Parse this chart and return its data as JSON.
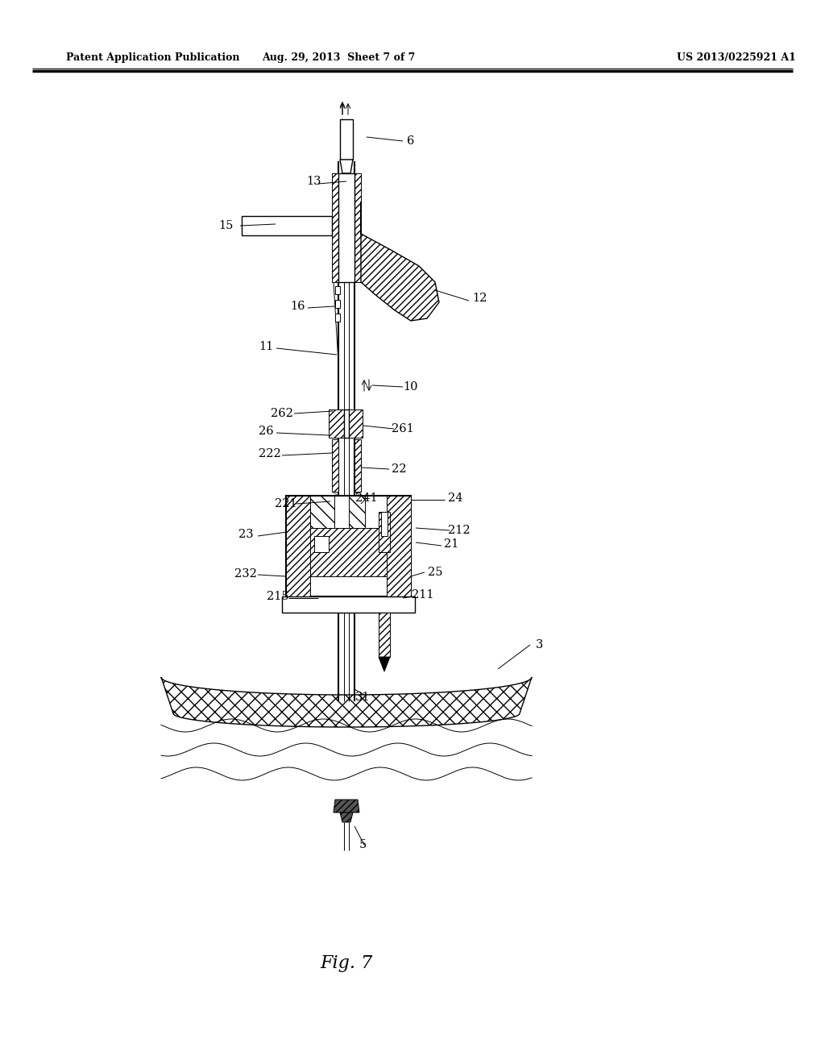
{
  "title": "Fig. 7",
  "header_left": "Patent Application Publication",
  "header_center": "Aug. 29, 2013  Sheet 7 of 7",
  "header_right": "US 2013/0225921 A1",
  "background_color": "#ffffff",
  "line_color": "#000000",
  "fig_width": 10.24,
  "fig_height": 13.2,
  "dpi": 100
}
